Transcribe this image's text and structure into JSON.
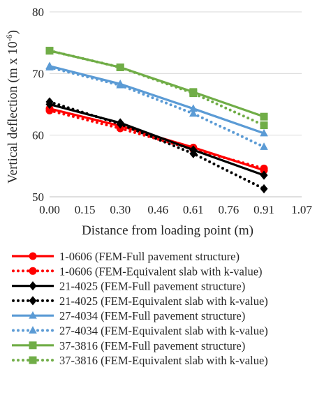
{
  "chart_data": {
    "type": "line",
    "xlabel": "Distance from loading point (m)",
    "ylabel": "Vertical deflection (m x 10",
    "ylabel_sup": "-6",
    "ylabel_close": ")",
    "x_ticks": [
      "0.00",
      "0.15",
      "0.30",
      "0.46",
      "0.61",
      "0.76",
      "0.91",
      "1.07"
    ],
    "y_ticks": [
      "50",
      "60",
      "70",
      "80"
    ],
    "xlim": [
      0,
      1.07
    ],
    "ylim": [
      50,
      80
    ],
    "grid": "horizontal",
    "legend_position": "bottom",
    "x": [
      0.0,
      0.3,
      0.61,
      0.91
    ],
    "series": [
      {
        "name": "1-0606 (FEM-Full pavement structure)",
        "color": "#ff0000",
        "marker": "circle",
        "dash": "solid",
        "values": [
          64.3,
          61.5,
          58.0,
          54.3
        ]
      },
      {
        "name": "1-0606 (FEM-Equivalent slab with k-value)",
        "color": "#ff0000",
        "marker": "circle",
        "dash": "dotted",
        "values": [
          64.0,
          61.1,
          57.7,
          54.6
        ]
      },
      {
        "name": "21-4025 (FEM-Full pavement structure)",
        "color": "#000000",
        "marker": "diamond",
        "dash": "solid",
        "values": [
          65.0,
          62.0,
          57.6,
          53.5
        ]
      },
      {
        "name": "21-4025 (FEM-Equivalent slab with k-value)",
        "color": "#000000",
        "marker": "diamond",
        "dash": "dotted",
        "values": [
          65.4,
          61.8,
          57.0,
          51.3
        ]
      },
      {
        "name": "27-4034 (FEM-Full pavement structure)",
        "color": "#5b9bd5",
        "marker": "triangle",
        "dash": "solid",
        "values": [
          71.2,
          68.3,
          64.3,
          60.3
        ]
      },
      {
        "name": "27-4034 (FEM-Equivalent slab with k-value)",
        "color": "#5b9bd5",
        "marker": "triangle",
        "dash": "dotted",
        "values": [
          71.0,
          68.1,
          63.5,
          58.1
        ]
      },
      {
        "name": "37-3816 (FEM-Full pavement structure)",
        "color": "#70ad47",
        "marker": "square",
        "dash": "solid",
        "values": [
          73.7,
          71.0,
          67.0,
          63.0
        ]
      },
      {
        "name": "37-3816 (FEM-Equivalent slab with k-value)",
        "color": "#70ad47",
        "marker": "square",
        "dash": "dotted",
        "values": [
          73.7,
          71.0,
          66.8,
          61.6
        ]
      }
    ]
  }
}
